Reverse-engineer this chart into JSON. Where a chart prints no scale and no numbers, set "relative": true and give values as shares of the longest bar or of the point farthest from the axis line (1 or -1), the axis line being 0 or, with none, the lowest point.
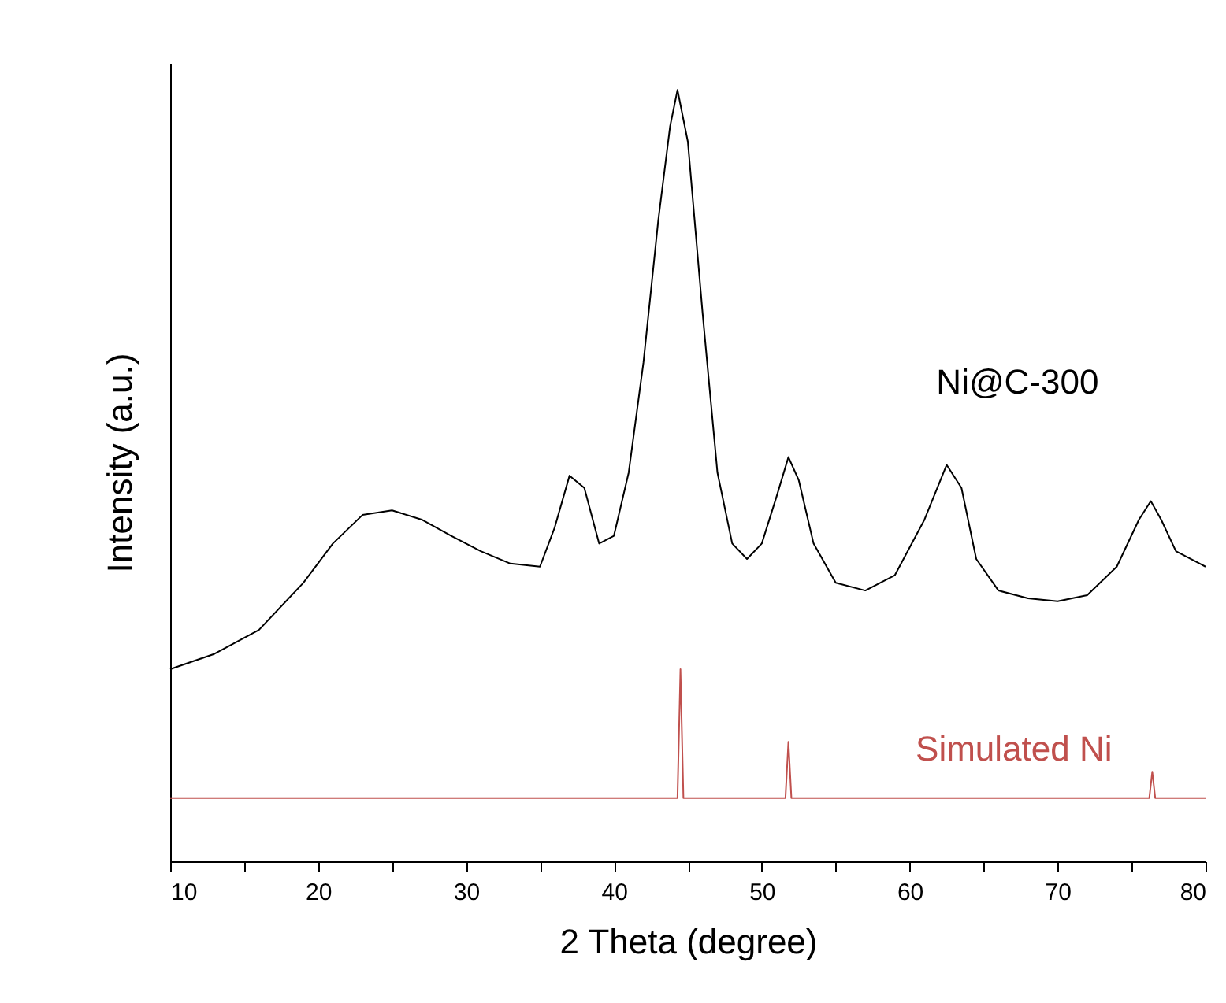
{
  "chart_data": {
    "type": "line",
    "relative": true,
    "xlabel": "2 Theta (degree)",
    "ylabel": "Intensity (a.u.)",
    "xlim": [
      10,
      80
    ],
    "xticks": [
      10,
      {
        "value": 15,
        "label": null
      },
      20,
      {
        "value": 25,
        "label": null
      },
      30,
      {
        "value": 35,
        "label": null
      },
      40,
      {
        "value": 45,
        "label": null
      },
      50,
      {
        "value": 55,
        "label": null
      },
      60,
      {
        "value": 65,
        "label": null
      },
      70,
      {
        "value": 75,
        "label": null
      },
      80
    ],
    "grid": false,
    "marker": "none",
    "line_style": "solid",
    "series": [
      {
        "name": "Ni@C-300",
        "color": "#000000",
        "x": [
          10,
          13,
          16,
          19,
          21,
          23,
          25,
          27,
          29,
          31,
          33,
          35,
          36,
          37,
          38,
          39,
          40,
          41,
          42,
          43,
          43.8,
          44.3,
          45,
          46,
          47,
          48,
          49,
          50,
          51,
          51.8,
          52.5,
          53.5,
          55,
          57,
          59,
          61,
          62.5,
          63.5,
          64.5,
          66,
          68,
          70,
          72,
          74,
          75.5,
          76.3,
          77,
          78,
          80
        ],
        "values": [
          0.249,
          0.269,
          0.3,
          0.361,
          0.412,
          0.449,
          0.455,
          0.443,
          0.422,
          0.402,
          0.386,
          0.382,
          0.433,
          0.5,
          0.484,
          0.412,
          0.422,
          0.504,
          0.647,
          0.831,
          0.953,
          1,
          0.933,
          0.71,
          0.504,
          0.412,
          0.392,
          0.412,
          0.473,
          0.524,
          0.494,
          0.412,
          0.361,
          0.351,
          0.371,
          0.443,
          0.514,
          0.484,
          0.392,
          0.351,
          0.341,
          0.337,
          0.345,
          0.382,
          0.443,
          0.467,
          0.443,
          0.402,
          0.382
        ]
      },
      {
        "name": "Simulated Ni",
        "color": "#c0504d",
        "x": [
          10,
          44.3,
          44.5,
          44.7,
          51.6,
          51.8,
          52.0,
          76.2,
          76.4,
          76.6,
          80
        ],
        "values": [
          0.082,
          0.082,
          0.249,
          0.082,
          0.082,
          0.155,
          0.082,
          0.082,
          0.116,
          0.082,
          0.082
        ]
      }
    ]
  }
}
